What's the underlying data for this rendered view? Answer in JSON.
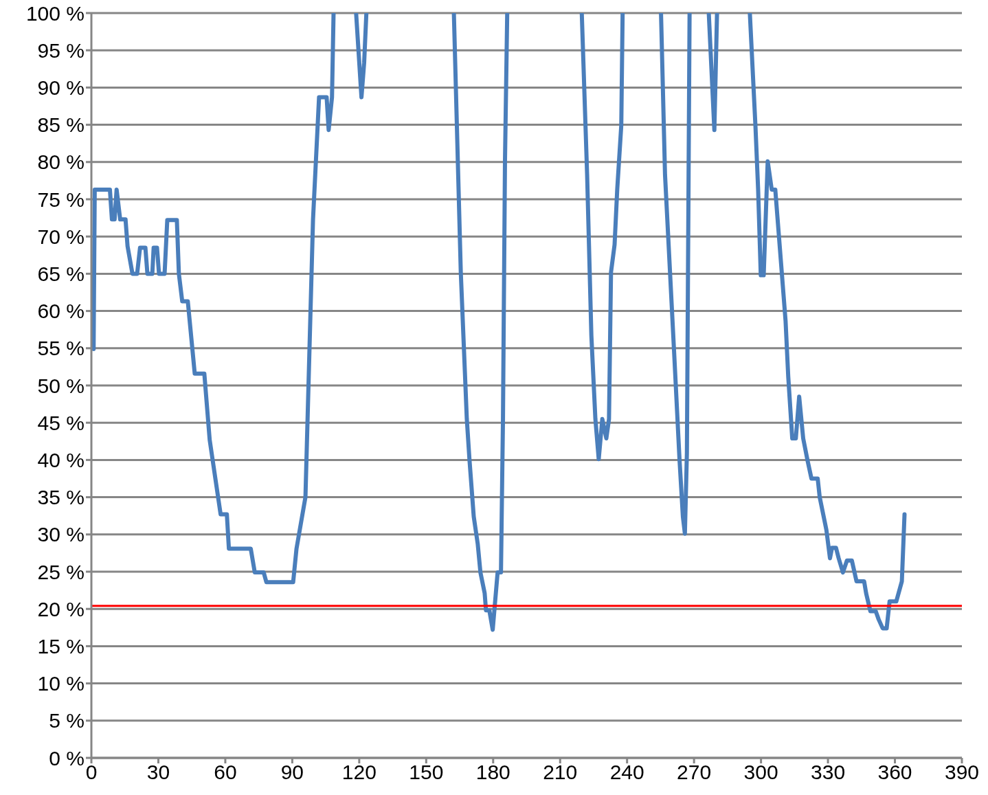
{
  "chart_data": {
    "type": "line",
    "x": [
      1,
      1.5,
      8.3,
      9.2,
      10.4,
      11.3,
      12.9,
      15.3,
      16.2,
      18.4,
      20.5,
      21.8,
      24.2,
      25.1,
      27.3,
      27.9,
      29.4,
      30.3,
      32.8,
      34,
      38.3,
      39.2,
      40.7,
      43.2,
      46.3,
      50.6,
      53,
      57.9,
      60.7,
      61.6,
      71.4,
      73.2,
      77.2,
      78.4,
      90.4,
      91.9,
      95.9,
      99.3,
      102,
      105.4,
      106.3,
      107.8,
      108.5,
      113,
      118.6,
      121,
      122.2,
      123.2,
      140,
      162.4,
      165.5,
      168.2,
      169.4,
      171.3,
      173.1,
      174.3,
      176.2,
      176.8,
      178.3,
      179.8,
      182,
      183.5,
      184.4,
      185.3,
      186.3,
      200,
      219.7,
      222.1,
      224,
      225.8,
      227.3,
      228.9,
      230.7,
      231.9,
      232.8,
      234.4,
      235.6,
      237.4,
      238,
      245,
      255.2,
      257,
      261,
      263.5,
      265,
      265.9,
      266.8,
      268,
      272,
      276.6,
      279.1,
      280.3,
      290,
      295,
      297.5,
      298.7,
      299.9,
      301.2,
      303,
      304.8,
      306.4,
      311,
      312.2,
      314,
      315.6,
      317.1,
      318.9,
      320.8,
      322.6,
      325.4,
      326.3,
      329.3,
      330.9,
      331.8,
      333.6,
      334.8,
      336.7,
      338.5,
      340.7,
      342.8,
      346.2,
      347.1,
      349,
      351.4,
      352.7,
      354.5,
      356.3,
      357.6,
      360.6,
      363.1,
      364.3
    ],
    "series": [
      {
        "color": "#4a7ebb",
        "values": [
          54.9,
          76.3,
          76.3,
          72.3,
          72.3,
          76.3,
          72.3,
          72.3,
          68.7,
          65,
          65,
          68.5,
          68.5,
          65,
          65,
          68.5,
          68.5,
          65,
          65,
          72.2,
          72.2,
          65,
          61.3,
          61.3,
          51.6,
          51.6,
          42.7,
          32.7,
          32.7,
          28.1,
          28.1,
          24.9,
          24.9,
          23.6,
          23.6,
          28.1,
          35,
          72.3,
          88.7,
          88.7,
          84.3,
          88.7,
          100,
          null,
          100,
          88.7,
          93.3,
          100,
          null,
          100,
          65.2,
          45.5,
          40,
          32.4,
          28.7,
          24.9,
          22.1,
          19.8,
          19.8,
          17.2,
          24.9,
          24.9,
          45.5,
          80.2,
          100,
          null,
          100,
          78.3,
          56.7,
          45.5,
          40.1,
          45.5,
          42.9,
          45.5,
          65.2,
          68.9,
          76.4,
          84.9,
          100,
          null,
          100,
          78.3,
          54.9,
          40,
          32.4,
          30.1,
          40.9,
          100,
          null,
          100,
          84.3,
          100,
          null,
          100,
          84.9,
          76.4,
          64.8,
          64.8,
          80.1,
          76.3,
          76.3,
          58.7,
          51.2,
          42.9,
          42.9,
          48.5,
          42.9,
          40,
          37.5,
          37.5,
          35,
          30.6,
          26.8,
          28.2,
          28.2,
          26.8,
          24.9,
          26.5,
          26.5,
          23.7,
          23.7,
          22.1,
          19.7,
          19.7,
          18.6,
          17.4,
          17.4,
          21,
          21,
          23.7,
          32.7
        ]
      }
    ],
    "xlim": [
      0,
      390
    ],
    "xticks": [
      0,
      30,
      60,
      90,
      120,
      150,
      180,
      210,
      240,
      270,
      300,
      330,
      360,
      390
    ],
    "ylim": [
      0,
      100
    ],
    "yticks": [
      {
        "value": 0,
        "label": "0 %"
      },
      {
        "value": 5,
        "label": "5 %"
      },
      {
        "value": 10,
        "label": "10 %"
      },
      {
        "value": 15,
        "label": "15 %"
      },
      {
        "value": 20,
        "label": "20 %"
      },
      {
        "value": 25,
        "label": "25 %"
      },
      {
        "value": 30,
        "label": "30 %"
      },
      {
        "value": 35,
        "label": "35 %"
      },
      {
        "value": 40,
        "label": "40 %"
      },
      {
        "value": 45,
        "label": "45 %"
      },
      {
        "value": 50,
        "label": "50 %"
      },
      {
        "value": 55,
        "label": "55 %"
      },
      {
        "value": 60,
        "label": "60 %"
      },
      {
        "value": 65,
        "label": "65 %"
      },
      {
        "value": 70,
        "label": "70 %"
      },
      {
        "value": 75,
        "label": "75 %"
      },
      {
        "value": 80,
        "label": "80 %"
      },
      {
        "value": 85,
        "label": "85 %"
      },
      {
        "value": 90,
        "label": "90 %"
      },
      {
        "value": 95,
        "label": "95 %"
      },
      {
        "value": 100,
        "label": "100 %"
      }
    ],
    "grid": "y",
    "ref_lines": [
      {
        "axis": "y",
        "value": 20.4,
        "color": "#ff0000"
      }
    ],
    "marker": "none",
    "line_style": "solid"
  }
}
